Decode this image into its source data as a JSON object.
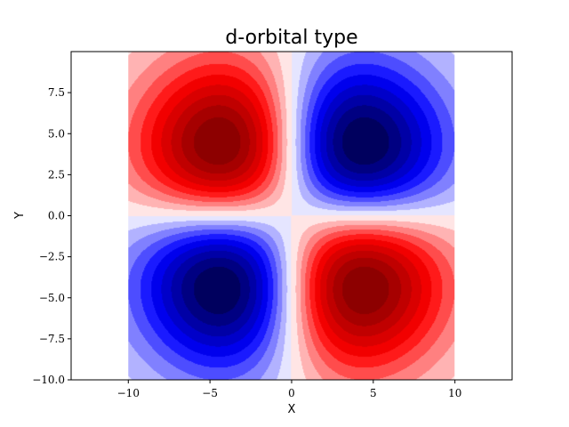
{
  "chart_data": {
    "type": "heatmap",
    "title": "d-orbital type",
    "xlabel": "X",
    "ylabel": "Y",
    "xlim": [
      -13.5,
      13.5
    ],
    "ylim": [
      -10.0,
      10.0
    ],
    "data_extent": {
      "x": [
        -10,
        10
      ],
      "y": [
        -10,
        10
      ]
    },
    "x_ticks": [
      -10,
      -5,
      0,
      5,
      10
    ],
    "x_tick_labels": [
      "−10",
      "−5",
      "0",
      "5",
      "10"
    ],
    "y_ticks": [
      -10.0,
      -7.5,
      -5.0,
      -2.5,
      0.0,
      2.5,
      5.0,
      7.5
    ],
    "y_tick_labels": [
      "−10.0",
      "−7.5",
      "−5.0",
      "−2.5",
      "0.0",
      "2.5",
      "5.0",
      "7.5"
    ],
    "colormap": "seismic",
    "colormap_stops": [
      "#00004c",
      "#0000ff",
      "#ffffff",
      "#ff0000",
      "#800000"
    ],
    "contour_levels": 20,
    "function": "-x * y * exp(-(x^2 + y^2)/40)",
    "extrema": [
      {
        "x": -4.5,
        "y": 4.5,
        "sign": "positive"
      },
      {
        "x": 4.5,
        "y": -4.5,
        "sign": "positive"
      },
      {
        "x": 4.5,
        "y": 4.5,
        "sign": "negative"
      },
      {
        "x": -4.5,
        "y": -4.5,
        "sign": "negative"
      }
    ],
    "grid": false,
    "legend": "none"
  }
}
